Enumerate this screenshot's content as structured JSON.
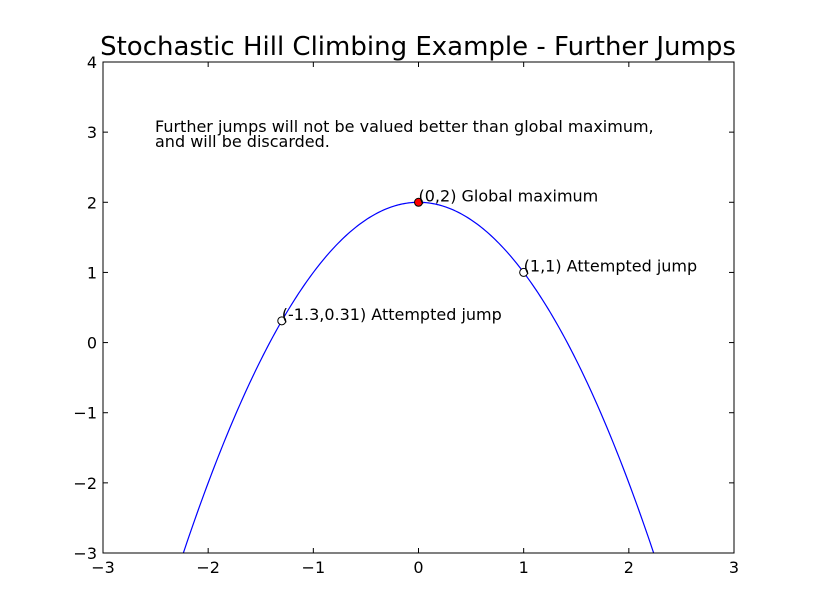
{
  "chart_data": {
    "type": "line",
    "title": "Stochastic Hill Climbing Example - Further Jumps",
    "xlabel": "",
    "ylabel": "",
    "xlim": [
      -3,
      3
    ],
    "ylim": [
      -3,
      4
    ],
    "x_ticks": [
      -3,
      -2,
      -1,
      0,
      1,
      2,
      3
    ],
    "y_ticks": [
      -3,
      -2,
      -1,
      0,
      1,
      2,
      3,
      4
    ],
    "x_tick_labels": [
      "−3",
      "−2",
      "−1",
      "0",
      "1",
      "2",
      "3"
    ],
    "y_tick_labels": [
      "−3",
      "−2",
      "−1",
      "0",
      "1",
      "2",
      "3",
      "4"
    ],
    "grid": false,
    "series": [
      {
        "function": "y = 2 - x^2",
        "x_range": [
          -2.24,
          2.24
        ],
        "color": "#0000ff"
      }
    ],
    "points": [
      {
        "x": 0,
        "y": 2,
        "color": "#ff0000",
        "label": "(0,2) Global maximum"
      },
      {
        "x": 1,
        "y": 1,
        "color": "#ffffff",
        "label": "(1,1) Attempted jump"
      },
      {
        "x": -1.3,
        "y": 0.31,
        "color": "#ffffff",
        "label": "(-1.3,0.31) Attempted jump"
      }
    ],
    "note": {
      "line1": "Further jumps will not be valued better than global maximum,",
      "line2": "and will be discarded."
    }
  }
}
